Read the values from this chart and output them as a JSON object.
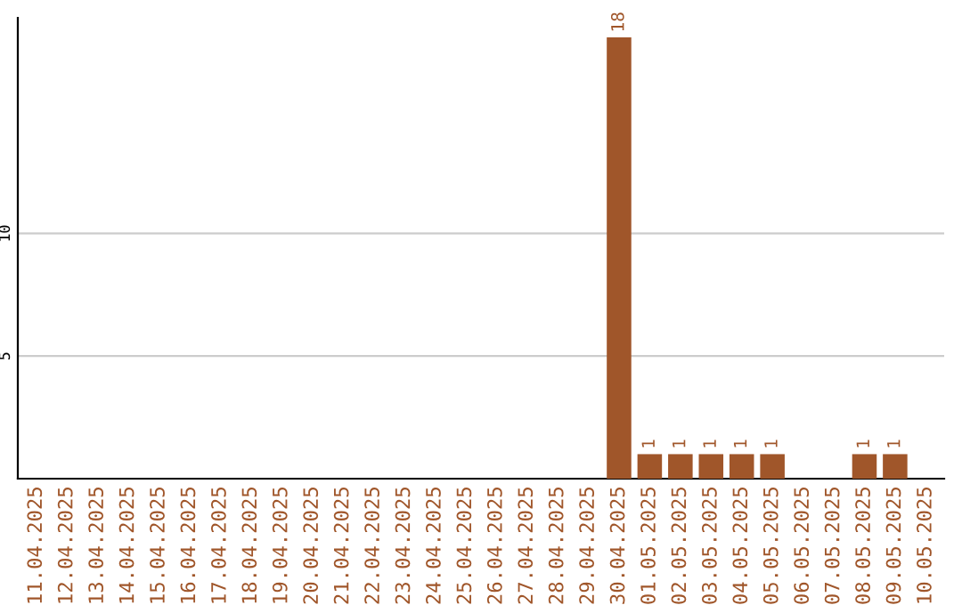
{
  "chart_data": {
    "type": "bar",
    "categories": [
      "11.04.2025",
      "12.04.2025",
      "13.04.2025",
      "14.04.2025",
      "15.04.2025",
      "16.04.2025",
      "17.04.2025",
      "18.04.2025",
      "19.04.2025",
      "20.04.2025",
      "21.04.2025",
      "22.04.2025",
      "23.04.2025",
      "24.04.2025",
      "25.04.2025",
      "26.04.2025",
      "27.04.2025",
      "28.04.2025",
      "29.04.2025",
      "30.04.2025",
      "01.05.2025",
      "02.05.2025",
      "03.05.2025",
      "04.05.2025",
      "05.05.2025",
      "06.05.2025",
      "07.05.2025",
      "08.05.2025",
      "09.05.2025",
      "10.05.2025"
    ],
    "values": [
      0,
      0,
      0,
      0,
      0,
      0,
      0,
      0,
      0,
      0,
      0,
      0,
      0,
      0,
      0,
      0,
      0,
      0,
      0,
      18,
      1,
      1,
      1,
      1,
      1,
      0,
      0,
      1,
      1,
      0
    ],
    "value_labels": [
      null,
      null,
      null,
      null,
      null,
      null,
      null,
      null,
      null,
      null,
      null,
      null,
      null,
      null,
      null,
      null,
      null,
      null,
      null,
      "18",
      "1",
      "1",
      "1",
      "1",
      "1",
      null,
      null,
      "1",
      "1",
      null
    ],
    "color": "#a0562a",
    "ylim": [
      0,
      18.8
    ],
    "yticks": [
      5,
      10
    ],
    "grid": "y"
  }
}
